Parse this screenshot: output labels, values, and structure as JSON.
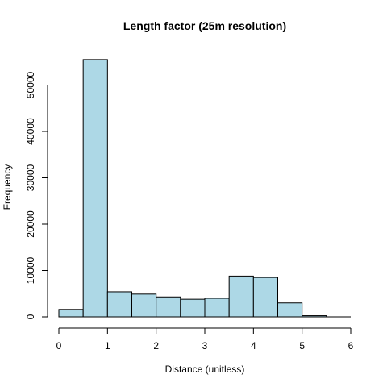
{
  "chart_data": {
    "type": "bar",
    "subtype": "histogram",
    "title": "Length factor (25m resolution)",
    "xlabel": "Distance (unitless)",
    "ylabel": "Frequency",
    "xlim": [
      0,
      6
    ],
    "ylim": [
      0,
      56000
    ],
    "bin_width": 0.5,
    "bins": [
      {
        "x0": 0.0,
        "x1": 0.5,
        "value": 1600
      },
      {
        "x0": 0.5,
        "x1": 1.0,
        "value": 55500
      },
      {
        "x0": 1.0,
        "x1": 1.5,
        "value": 5400
      },
      {
        "x0": 1.5,
        "x1": 2.0,
        "value": 4900
      },
      {
        "x0": 2.0,
        "x1": 2.5,
        "value": 4300
      },
      {
        "x0": 2.5,
        "x1": 3.0,
        "value": 3800
      },
      {
        "x0": 3.0,
        "x1": 3.5,
        "value": 4000
      },
      {
        "x0": 3.5,
        "x1": 4.0,
        "value": 8800
      },
      {
        "x0": 4.0,
        "x1": 4.5,
        "value": 8500
      },
      {
        "x0": 4.5,
        "x1": 5.0,
        "value": 3000
      },
      {
        "x0": 5.0,
        "x1": 5.5,
        "value": 250
      },
      {
        "x0": 5.5,
        "x1": 6.0,
        "value": 0
      }
    ],
    "x_ticks": [
      "0",
      "1",
      "2",
      "3",
      "4",
      "5",
      "6"
    ],
    "y_ticks": [
      "0",
      "10000",
      "20000",
      "30000",
      "40000",
      "50000"
    ],
    "bar_color": "#add8e6",
    "bar_edge_color": "#000000",
    "grid": false,
    "legend": "none"
  }
}
